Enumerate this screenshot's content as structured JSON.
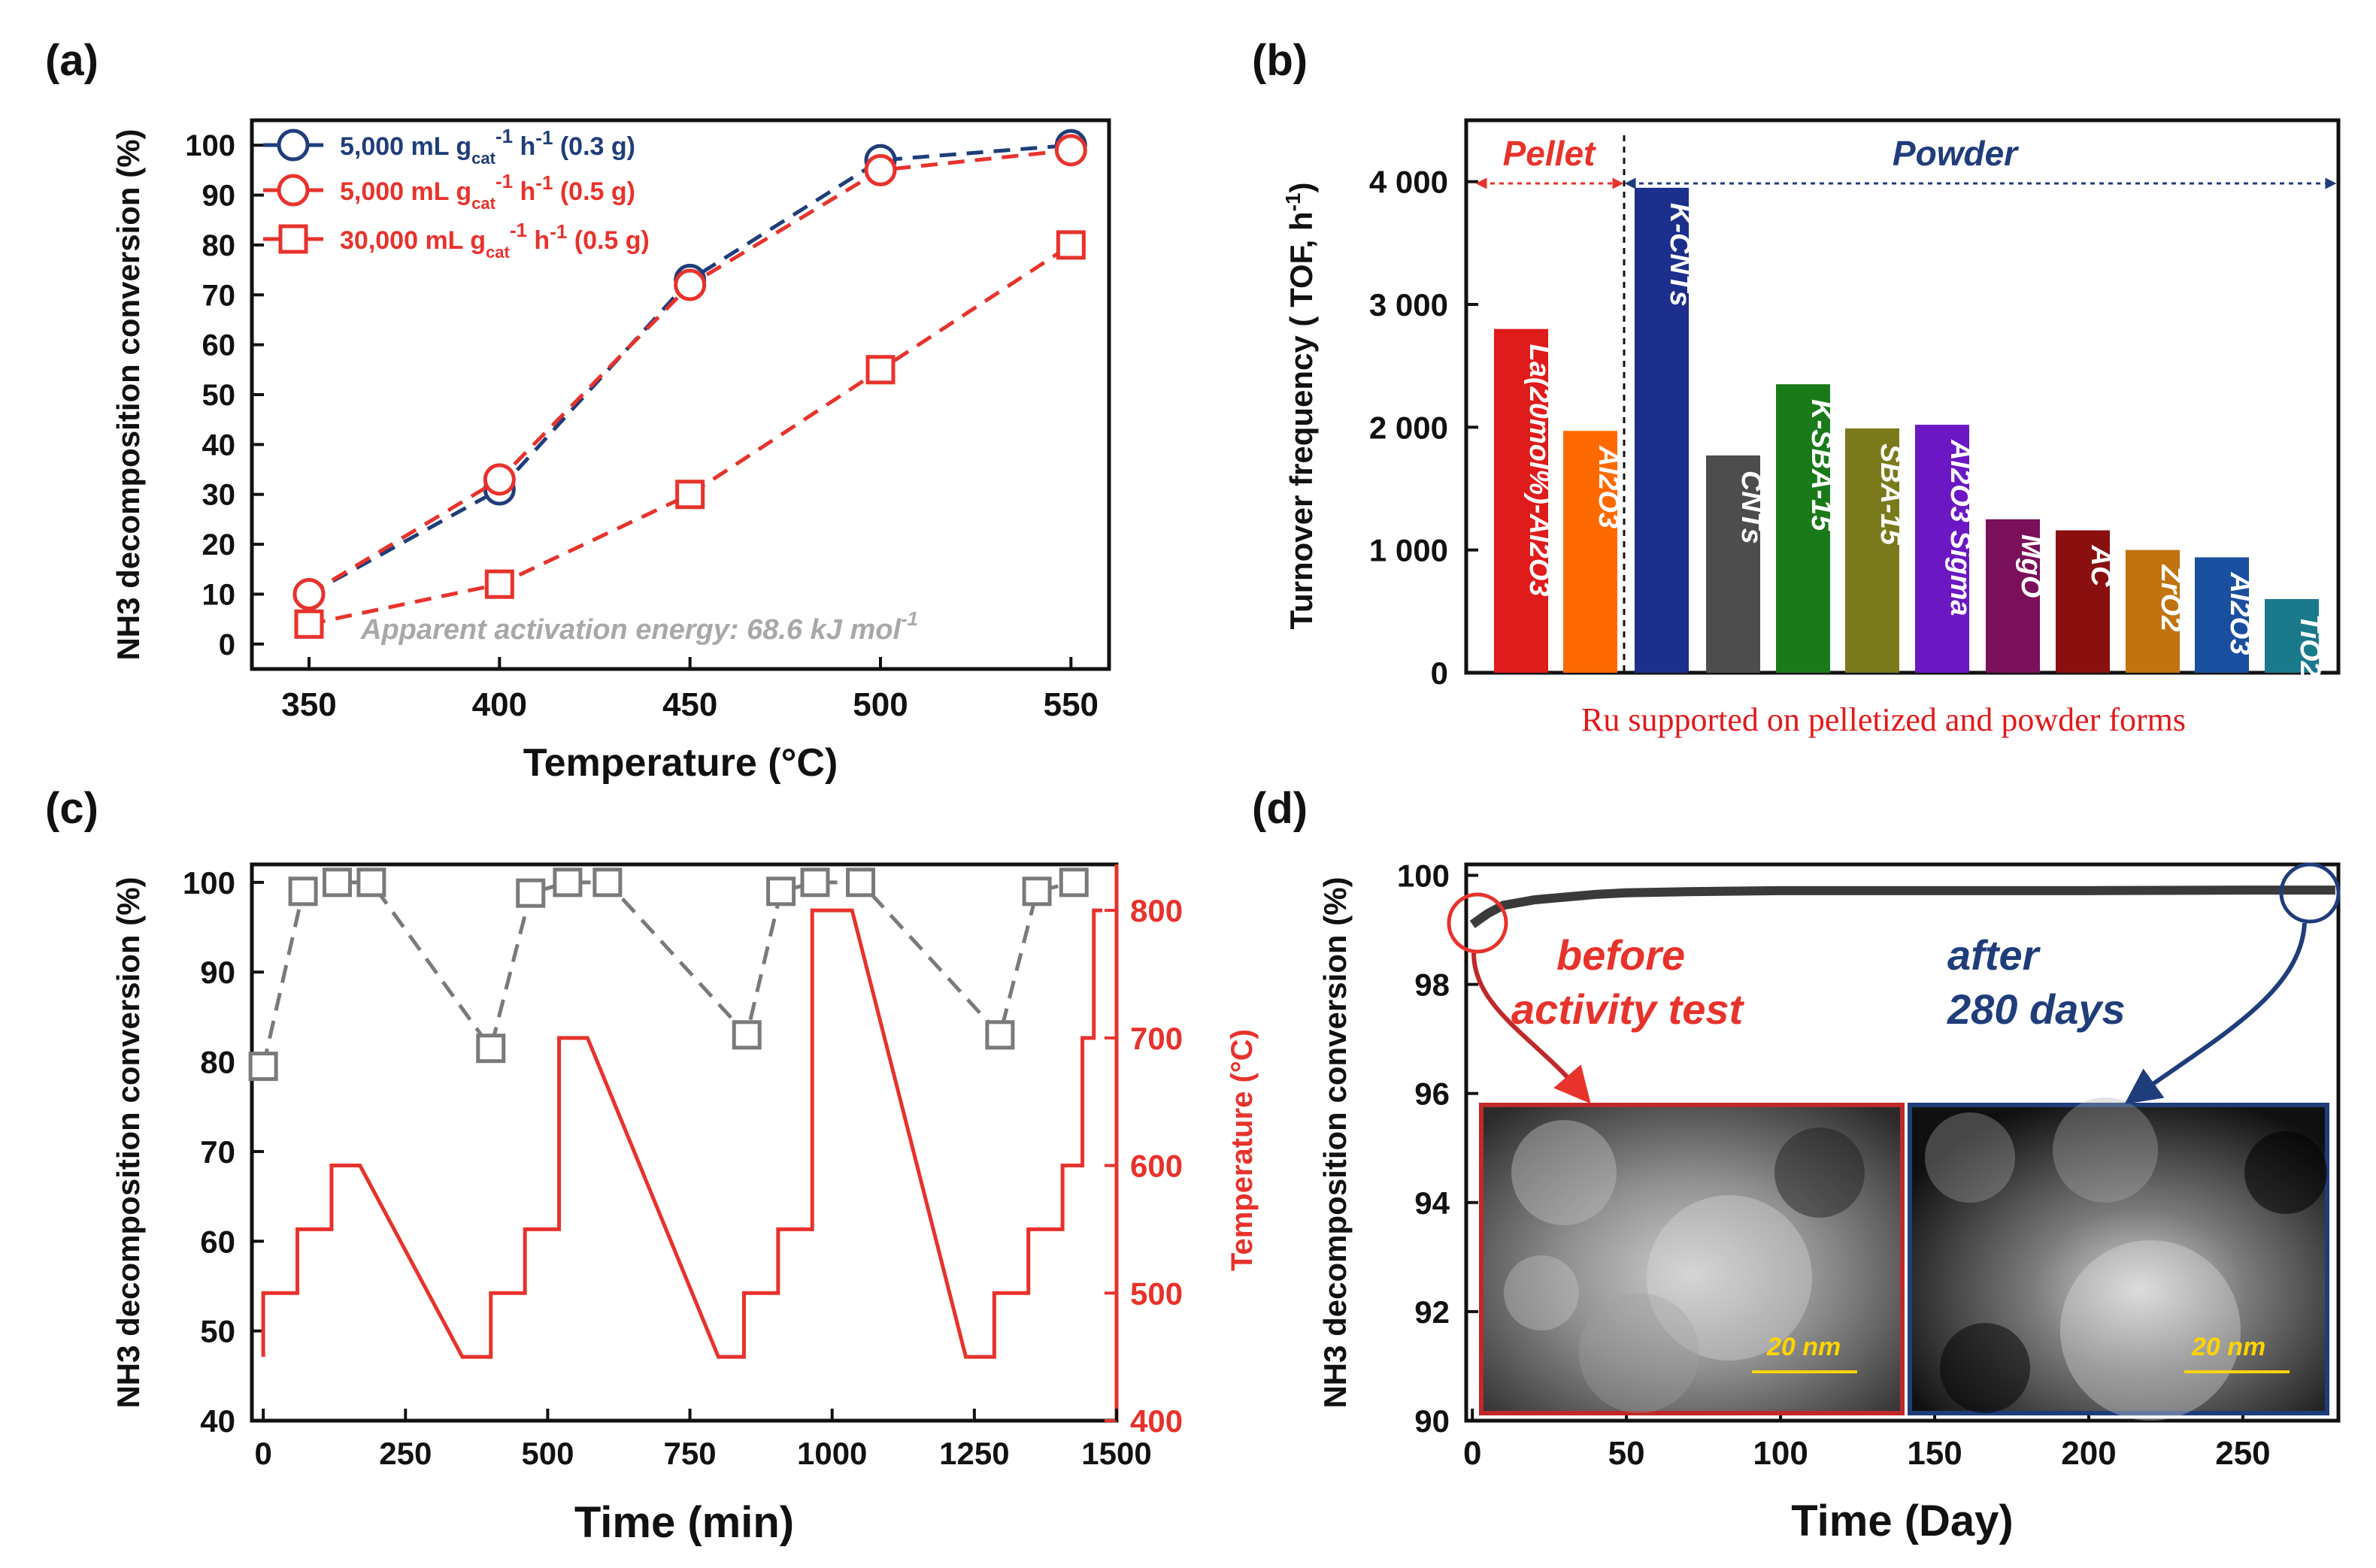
{
  "chart_data": [
    {
      "panel": "(a)",
      "type": "line",
      "xlabel": "Temperature (°C)",
      "ylabel": "NH3 decomposition conversion (%)",
      "xlim": [
        335,
        560
      ],
      "ylim": [
        -5,
        105
      ],
      "xticks": [
        350,
        400,
        450,
        500,
        550
      ],
      "yticks": [
        0,
        10,
        20,
        30,
        40,
        50,
        60,
        70,
        80,
        90,
        100
      ],
      "x": [
        350,
        400,
        450,
        500,
        550
      ],
      "series": [
        {
          "name": "5,000 mL gcat-1 h-1 (0.3 g)",
          "color": "#1f3d7a",
          "marker": "circle",
          "values": [
            10,
            31,
            73,
            97,
            100
          ]
        },
        {
          "name": "5,000 mL gcat-1 h-1 (0.5 g)",
          "color": "#e8322c",
          "marker": "circle",
          "values": [
            10,
            33,
            72,
            95,
            99
          ]
        },
        {
          "name": "30,000 mL gcat-1 h-1 (0.5 g)",
          "color": "#e8322c",
          "marker": "square",
          "values": [
            4,
            12,
            30,
            55,
            80
          ]
        }
      ],
      "legend": [
        {
          "main": "5,000 mL g",
          "sub": "cat",
          "sup": "-1",
          "tail": " h",
          "tail_sup": "-1",
          "end": " (0.3 g)"
        },
        {
          "main": "5,000 mL g",
          "sub": "cat",
          "sup": "-1",
          "tail": "  h",
          "tail_sup": "-1",
          "end": " (0.5 g)"
        },
        {
          "main": "30,000 mL g",
          "sub": "cat",
          "sup": "-1",
          "tail": "  h",
          "tail_sup": "-1",
          "end": " (0.5 g)"
        }
      ],
      "annotation": "Apparent activation energy: 68.6 kJ mol",
      "annotation_sup": "-1"
    },
    {
      "panel": "(b)",
      "type": "bar",
      "ylabel": "Turnover frequency ( TOF, h",
      "ylabel_sup": "-1",
      "ylabel_end": ")",
      "ylim": [
        0,
        4500
      ],
      "yticks": [
        0,
        1000,
        2000,
        3000,
        4000
      ],
      "ytick_labels": [
        "0",
        "1 000",
        "2 000",
        "3 000",
        "4 000"
      ],
      "categories": [
        "La(20mol%)-Al2O3",
        "Al2O3",
        "K-CNTs",
        "CNTs",
        "K-SBA-15",
        "SBA-15",
        "Al2O3 Sigma",
        "MgO",
        "AC",
        "ZrO2",
        "Al2O3",
        "TiO2"
      ],
      "values": [
        2800,
        1970,
        3950,
        1770,
        2350,
        1990,
        2020,
        1250,
        1160,
        1000,
        940,
        600
      ],
      "colors": [
        "#e01b1b",
        "#ff6a00",
        "#1c2f8c",
        "#4d4d4d",
        "#1a7a1a",
        "#7a7a1c",
        "#6b18c4",
        "#7a0f5a",
        "#8a1010",
        "#c0730f",
        "#1a4fa0",
        "#1a7a8c"
      ],
      "group_labels": [
        "Pellet",
        "Powder"
      ],
      "xlabel": "Ru supported on pelletized and powder forms"
    },
    {
      "panel": "(c)",
      "type": "line",
      "xlabel": "Time (min)",
      "ylabel": "NH3 decomposition conversion (%)",
      "y2label": "Temperature (°C)",
      "xlim": [
        -20,
        1500
      ],
      "ylim": [
        40,
        102
      ],
      "y2lim": [
        400,
        836
      ],
      "xticks": [
        0,
        250,
        500,
        750,
        1000,
        1250,
        1500
      ],
      "yticks": [
        40,
        50,
        60,
        70,
        80,
        90,
        100
      ],
      "y2ticks": [
        400,
        500,
        600,
        700,
        800
      ],
      "series": [
        {
          "name": "NH3 decomposition conversion",
          "color": "#7a7a7a",
          "marker": "square",
          "x": [
            0,
            70,
            130,
            190,
            400,
            470,
            535,
            605,
            850,
            910,
            970,
            1050,
            1295,
            1360,
            1425
          ],
          "values": [
            79.5,
            99,
            100,
            100,
            81.5,
            98.8,
            100,
            100,
            83,
            99,
            100,
            100,
            83,
            99,
            100
          ]
        },
        {
          "name": "Temperature",
          "color": "#e8322c",
          "marker": "none",
          "x": [
            0,
            0,
            30,
            60,
            60,
            90,
            120,
            120,
            170,
            350,
            400,
            400,
            430,
            460,
            460,
            490,
            520,
            520,
            570,
            800,
            845,
            845,
            875,
            905,
            905,
            935,
            965,
            965,
            1035,
            1235,
            1285,
            1285,
            1315,
            1345,
            1345,
            1375,
            1405,
            1405,
            1440,
            1440,
            1455,
            1460,
            1460,
            1475
          ],
          "values": [
            450,
            500,
            500,
            500,
            550,
            550,
            550,
            600,
            600,
            450,
            450,
            500,
            500,
            500,
            550,
            550,
            550,
            700,
            700,
            450,
            450,
            500,
            500,
            500,
            550,
            550,
            550,
            800,
            800,
            450,
            450,
            500,
            500,
            500,
            550,
            550,
            550,
            600,
            600,
            700,
            700,
            700,
            800,
            800
          ]
        }
      ]
    },
    {
      "panel": "(d)",
      "type": "line",
      "xlabel": "Time (Day)",
      "ylabel": "NH3 decomposition conversion (%)",
      "xlim": [
        -2,
        281
      ],
      "ylim": [
        90,
        100.2
      ],
      "xticks": [
        0,
        50,
        100,
        150,
        200,
        250
      ],
      "yticks": [
        90,
        92,
        94,
        96,
        98,
        100
      ],
      "series": [
        {
          "name": "NH3 decomposition conversion",
          "color": "#3a3a3a",
          "x": [
            0,
            5,
            10,
            20,
            30,
            40,
            50,
            70,
            100,
            150,
            200,
            250,
            280
          ],
          "values": [
            99.1,
            99.3,
            99.45,
            99.55,
            99.6,
            99.65,
            99.68,
            99.7,
            99.72,
            99.72,
            99.72,
            99.73,
            99.73
          ]
        }
      ],
      "annotations": [
        {
          "text": "before",
          "text2": "activity test",
          "color": "#e8322c"
        },
        {
          "text": "after",
          "text2": "280 days",
          "color": "#1f3d7a"
        }
      ],
      "scale_bar": "20 nm"
    }
  ],
  "colors": {
    "red": "#e8322c",
    "blue": "#1f3d7a",
    "gray": "#7a7a7a",
    "dark": "#3a3a3a",
    "accent_red_text": "#e01b1b",
    "scale_yellow": "#ffd400"
  },
  "panel_labels": [
    "(a)",
    "(b)",
    "(c)",
    "(d)"
  ]
}
